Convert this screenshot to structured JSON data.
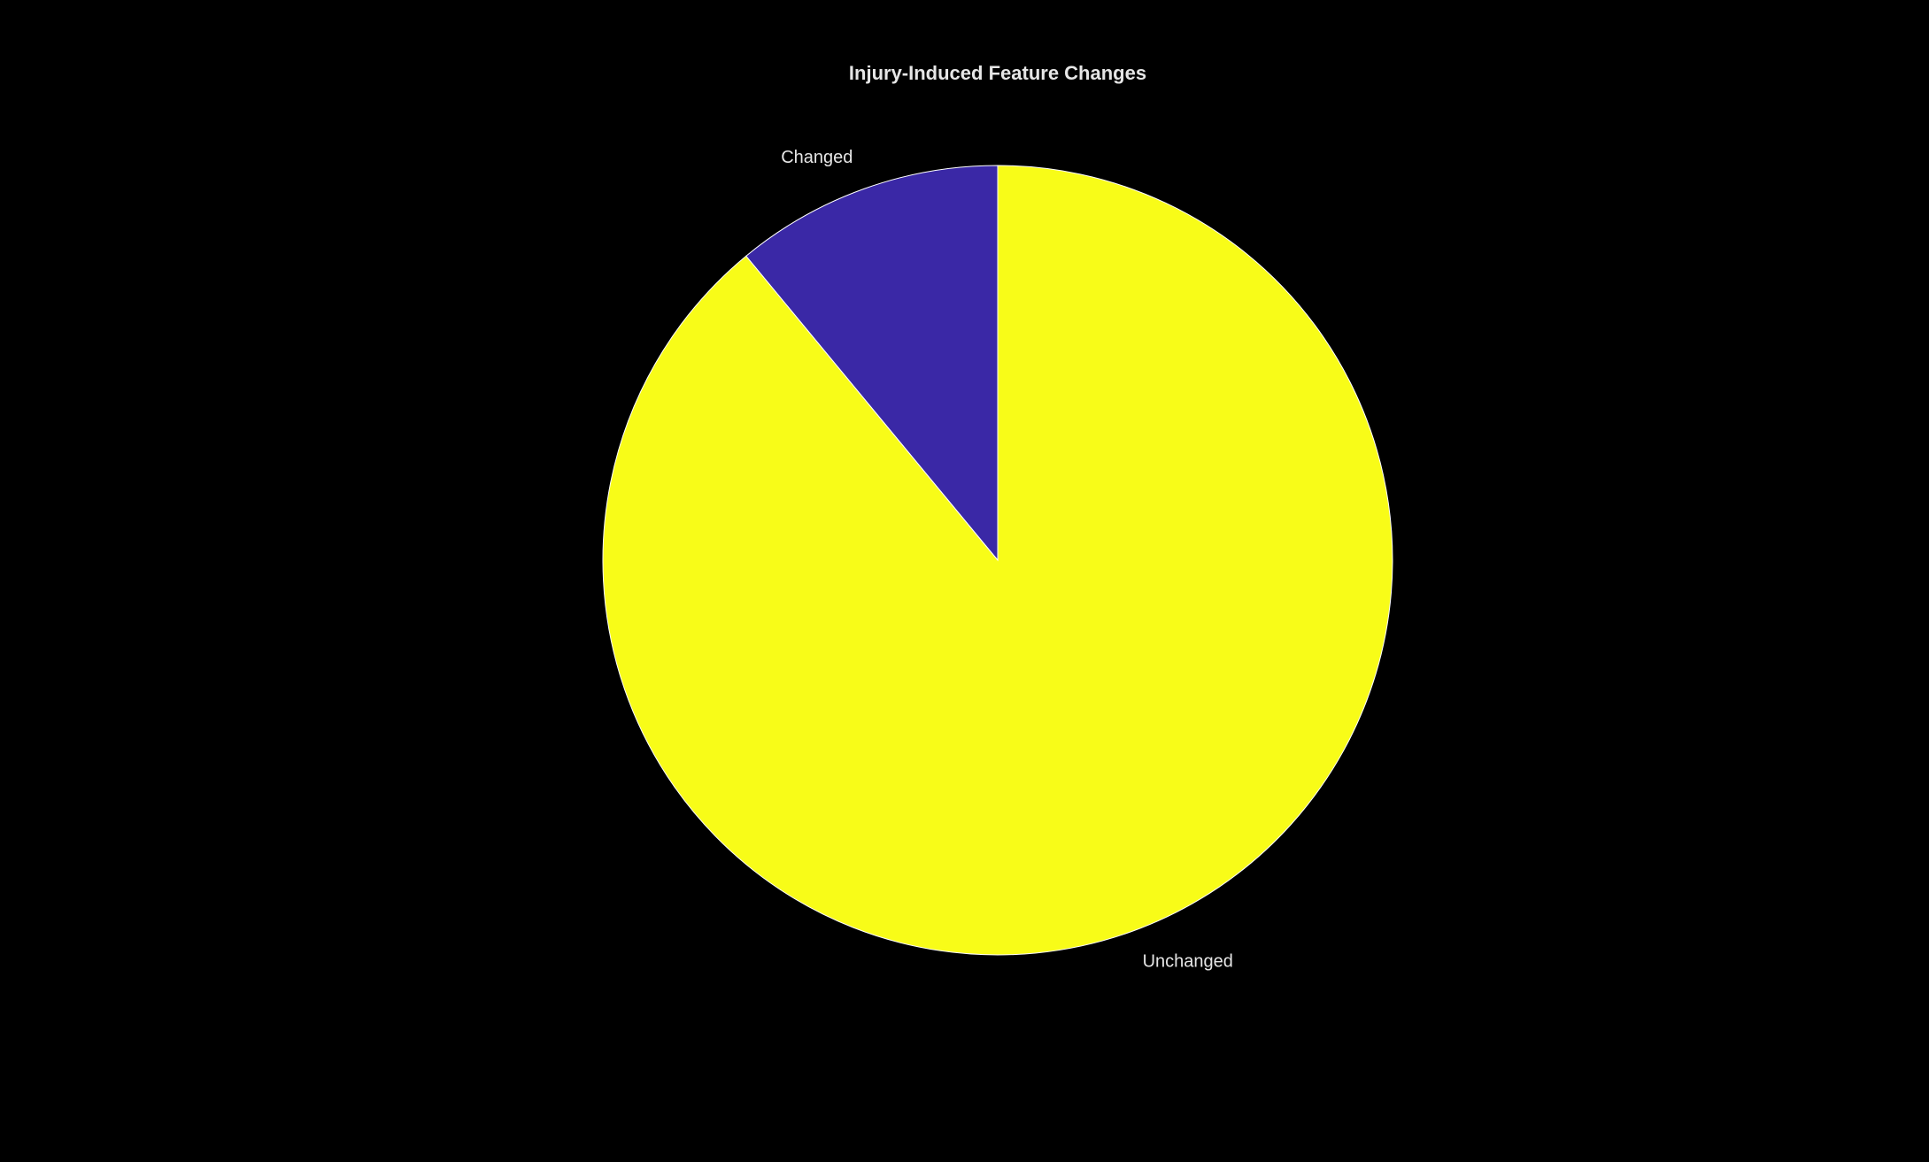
{
  "chart_data": {
    "type": "pie",
    "title": "Injury-Induced Feature Changes",
    "start_angle": "12 o'clock",
    "direction": "counterclockwise",
    "slices": [
      {
        "label": "Changed",
        "value": 11,
        "color": "#3a28a6"
      },
      {
        "label": "Unchanged",
        "value": 89,
        "color": "#f8fc18"
      }
    ],
    "slice_border_color": "#ffffff",
    "background": "#000000",
    "legend": "none"
  }
}
